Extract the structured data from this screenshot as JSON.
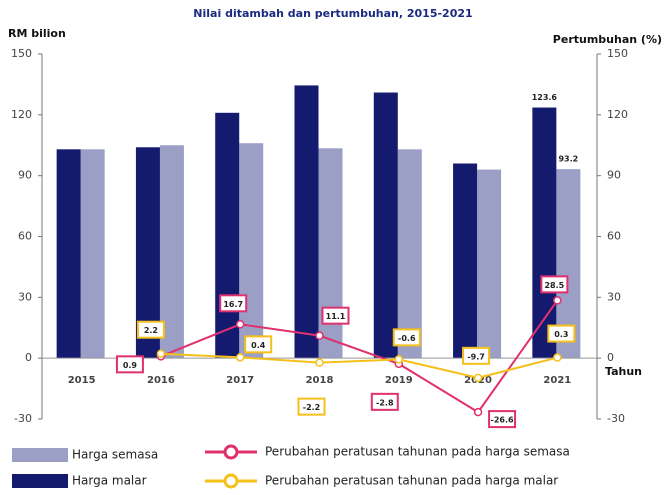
{
  "chart_data": {
    "type": "bar_line",
    "title": "Nilai ditambah dan pertumbuhan, 2015-2021",
    "y_label": "RM bilion",
    "y2_label": "Pertumbuhan (%)",
    "x_label": "Tahun",
    "categories": [
      "2015",
      "2016",
      "2017",
      "2018",
      "2019",
      "2020",
      "2021"
    ],
    "ylim": [
      -30,
      150
    ],
    "yticks": [
      -30,
      0,
      30,
      60,
      90,
      120,
      150
    ],
    "y2lim": [
      -30,
      150
    ],
    "y2ticks": [
      -30,
      0,
      30,
      60,
      90,
      120,
      150
    ],
    "series": [
      {
        "name": "Harga semasa",
        "type": "bar",
        "color": "#9b9fc6",
        "values": [
          103,
          105,
          106,
          103.5,
          103,
          93,
          93.2
        ]
      },
      {
        "name": "Harga malar",
        "type": "bar",
        "color": "#141a6e",
        "values": [
          103,
          104,
          121,
          134.5,
          131,
          96,
          123.6
        ]
      },
      {
        "name": "Perubahan peratusan tahunan pada harga semasa",
        "type": "line",
        "axis": "y2",
        "color": "#e0306e",
        "values": [
          null,
          0.9,
          16.7,
          11.1,
          -2.8,
          -26.6,
          28.5
        ]
      },
      {
        "name": "Perubahan peratusan tahunan pada harga malar",
        "type": "line",
        "axis": "y2",
        "color": "#f5c01a",
        "values": [
          null,
          2.2,
          0.4,
          -2.2,
          -0.6,
          -9.7,
          0.3
        ]
      }
    ]
  }
}
